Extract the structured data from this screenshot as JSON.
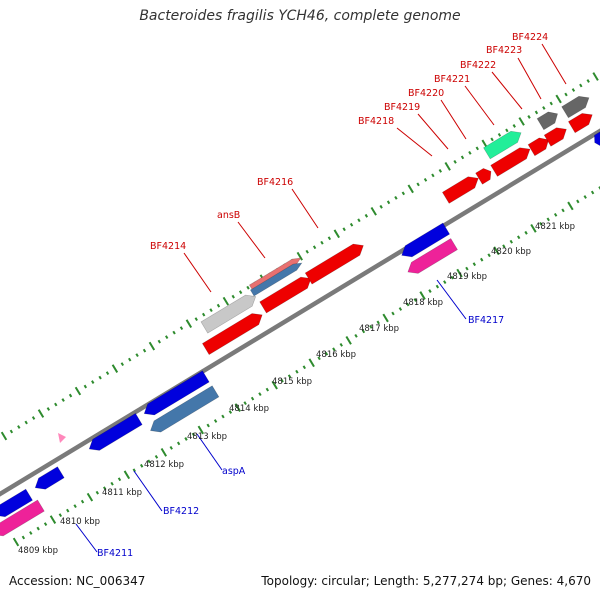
{
  "title": "Bacteroides fragilis YCH46, complete genome",
  "footer": {
    "accession": "Accession: NC_006347",
    "summary": "Topology: circular; Length: 5,277,274 bp; Genes: 4,670"
  },
  "colors": {
    "backbone": "#7a7a7a",
    "tick": "#2e8b2e",
    "label_top": "#cc0000",
    "label_bottom": "#0000cc",
    "gene_red": "#ee0000",
    "gene_blue": "#0000dd",
    "gene_magenta": "#ee2299",
    "gene_steel": "#4477aa",
    "gene_gray": "#c8c8c8",
    "gene_dark": "#666666",
    "gene_teal": "#22ee99",
    "gene_pink": "#ff88bb",
    "gene_salmon": "#e87070"
  },
  "scale_labels": [
    "4809 kbp",
    "4810 kbp",
    "4811 kbp",
    "4812 kbp",
    "4813 kbp",
    "4814 kbp",
    "4815 kbp",
    "4816 kbp",
    "4817 kbp",
    "4818 kbp",
    "4819 kbp",
    "4820 kbp",
    "4821 kbp"
  ],
  "top_labels": [
    "BF4214",
    "ansB",
    "BF4216",
    "BF4218",
    "BF4219",
    "BF4220",
    "BF4221",
    "BF4222",
    "BF4223",
    "BF4224"
  ],
  "bottom_labels": [
    "BF4211",
    "BF4212",
    "aspA",
    "BF4217"
  ]
}
